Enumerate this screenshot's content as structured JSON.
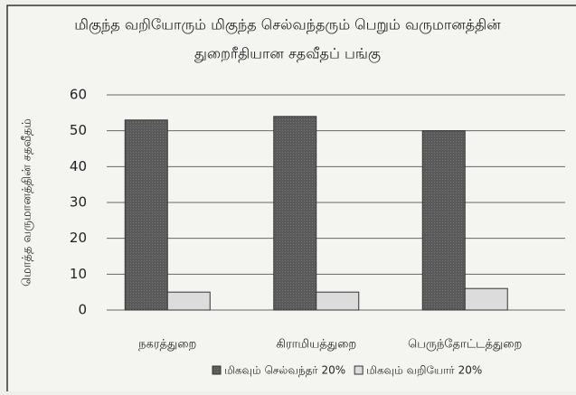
{
  "chart_data": {
    "type": "bar",
    "title": [
      "மிகுந்த வறியோரும் மிகுந்த செல்வந்தரும் பெறும் வருமானத்தின்",
      "துறைரீதியான சதவீதப் பங்கு"
    ],
    "y_label": "மொத்த வருமானத்தின் சதவீதம்",
    "categories": [
      "நகரத்துறை",
      "கிராமியத்துறை",
      "பெருந்தோட்டத்துறை"
    ],
    "series": [
      {
        "name": "மிகவும் செல்வந்தர் 20%",
        "color": "#5a5a5a",
        "values": [
          53,
          54,
          50
        ]
      },
      {
        "name": "மிகவும் வறியோர் 20%",
        "color": "#dcdcdc",
        "values": [
          5,
          5,
          6
        ]
      }
    ],
    "ylim": [
      0,
      60
    ],
    "yticks": [
      0,
      10,
      20,
      30,
      40,
      50,
      60
    ],
    "grid": true,
    "legend": "bottom"
  }
}
